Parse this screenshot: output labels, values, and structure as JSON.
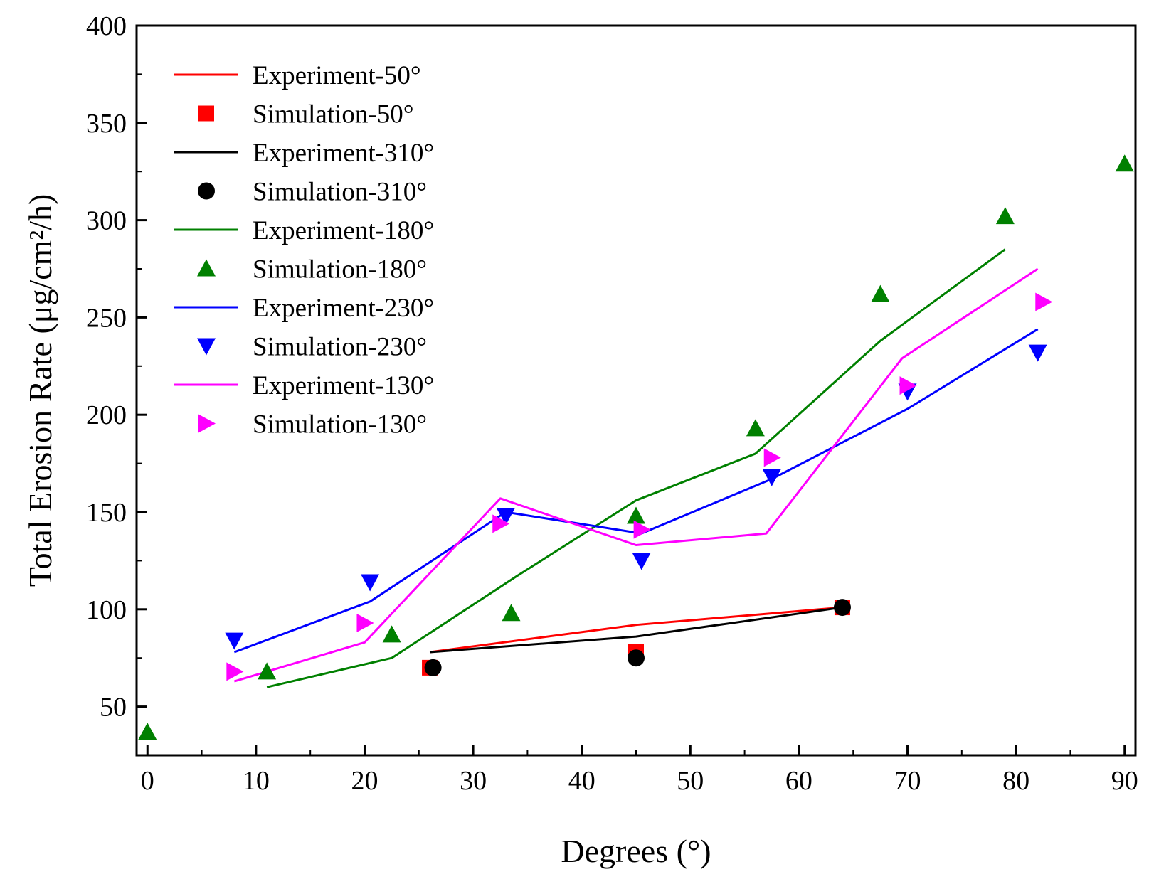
{
  "chart_data": {
    "type": "scatter",
    "xlabel": "Degrees (°)",
    "ylabel": "Total Erosion Rate (μg/cm²/h)",
    "xlim": [
      -1,
      91
    ],
    "ylim": [
      25,
      400
    ],
    "xticks": [
      0,
      10,
      20,
      30,
      40,
      50,
      60,
      70,
      80,
      90
    ],
    "yticks": [
      50,
      100,
      150,
      200,
      250,
      300,
      350,
      400
    ],
    "x_tick_labels": [
      "0",
      "10",
      "20",
      "30",
      "40",
      "50",
      "60",
      "70",
      "80",
      "90"
    ],
    "y_tick_labels": [
      "50",
      "100",
      "150",
      "200",
      "250",
      "300",
      "350",
      "400"
    ],
    "grid": false,
    "legend_position": "top-left",
    "series": [
      {
        "name": "Experiment-50°",
        "kind": "line",
        "color": "#ff0000",
        "points": [
          [
            26,
            78
          ],
          [
            45,
            92
          ],
          [
            64,
            101
          ]
        ]
      },
      {
        "name": "Simulation-50°",
        "kind": "marker",
        "marker": "square",
        "color": "#ff0000",
        "points": [
          [
            26,
            70
          ],
          [
            45,
            78
          ],
          [
            64,
            101
          ]
        ]
      },
      {
        "name": "Experiment-310°",
        "kind": "line",
        "color": "#000000",
        "points": [
          [
            26,
            78
          ],
          [
            45,
            86
          ],
          [
            64,
            101
          ]
        ]
      },
      {
        "name": "Simulation-310°",
        "kind": "marker",
        "marker": "circle",
        "color": "#000000",
        "points": [
          [
            26.3,
            70
          ],
          [
            45,
            75
          ],
          [
            64,
            101
          ]
        ]
      },
      {
        "name": "Experiment-180°",
        "kind": "line",
        "color": "#008000",
        "points": [
          [
            11,
            60
          ],
          [
            22.5,
            75
          ],
          [
            34,
            117
          ],
          [
            45,
            156
          ],
          [
            56,
            180
          ],
          [
            67.5,
            238
          ],
          [
            79,
            285
          ]
        ]
      },
      {
        "name": "Simulation-180°",
        "kind": "marker",
        "marker": "triangle-up",
        "color": "#008000",
        "points": [
          [
            0,
            37
          ],
          [
            11,
            68
          ],
          [
            22.5,
            87
          ],
          [
            33.5,
            98
          ],
          [
            45,
            148
          ],
          [
            56,
            193
          ],
          [
            67.5,
            262
          ],
          [
            79,
            302
          ],
          [
            90,
            329
          ]
        ]
      },
      {
        "name": "Experiment-230°",
        "kind": "line",
        "color": "#0000ff",
        "points": [
          [
            8,
            78
          ],
          [
            20.5,
            104
          ],
          [
            33,
            150
          ],
          [
            45.5,
            139
          ],
          [
            57.5,
            167
          ],
          [
            70,
            203
          ],
          [
            82,
            244
          ]
        ]
      },
      {
        "name": "Simulation-230°",
        "kind": "marker",
        "marker": "triangle-down",
        "color": "#0000ff",
        "points": [
          [
            8,
            84
          ],
          [
            20.5,
            114
          ],
          [
            33,
            148
          ],
          [
            45.5,
            125
          ],
          [
            57.5,
            168
          ],
          [
            70,
            212
          ],
          [
            82,
            232
          ]
        ]
      },
      {
        "name": "Experiment-130°",
        "kind": "line",
        "color": "#ff00ff",
        "points": [
          [
            8,
            63
          ],
          [
            20,
            83
          ],
          [
            32.5,
            157
          ],
          [
            45,
            133
          ],
          [
            57,
            139
          ],
          [
            69.5,
            229
          ],
          [
            82,
            275
          ]
        ]
      },
      {
        "name": "Simulation-130°",
        "kind": "marker",
        "marker": "triangle-right",
        "color": "#ff00ff",
        "points": [
          [
            8,
            68
          ],
          [
            20,
            93
          ],
          [
            32.5,
            144
          ],
          [
            45.5,
            141
          ],
          [
            57.5,
            178
          ],
          [
            70,
            215
          ],
          [
            82.5,
            258
          ]
        ]
      }
    ]
  }
}
